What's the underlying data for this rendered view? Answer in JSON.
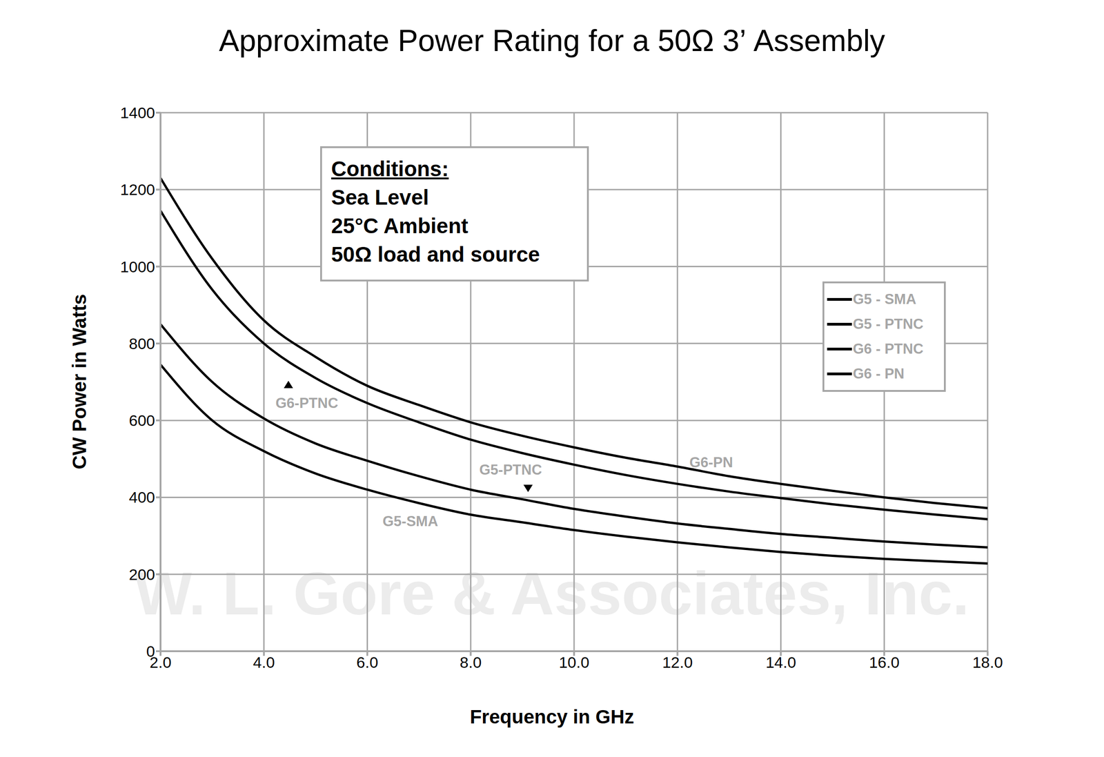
{
  "chart_data": {
    "type": "line",
    "title": "Approximate Power Rating for a 50Ω 3’ Assembly",
    "x_label": "Frequency in GHz",
    "y_label": "CW Power in Watts",
    "x": [
      2,
      3,
      4,
      5,
      6,
      7,
      8,
      9,
      10,
      11,
      12,
      13,
      14,
      15,
      16,
      17,
      18
    ],
    "series": [
      {
        "name": "G5 - SMA",
        "color": "#000000",
        "line_style": "solid",
        "values": [
          745,
          600,
          520,
          462,
          420,
          385,
          355,
          335,
          315,
          298,
          283,
          270,
          258,
          248,
          240,
          234,
          228
        ]
      },
      {
        "name": "G5 - PTNC",
        "color": "#000000",
        "line_style": "solid",
        "values": [
          850,
          700,
          605,
          540,
          495,
          455,
          420,
          395,
          370,
          350,
          332,
          318,
          305,
          295,
          285,
          277,
          270
        ]
      },
      {
        "name": "G6 - PTNC",
        "color": "#000000",
        "line_style": "solid",
        "values": [
          1145,
          940,
          800,
          710,
          645,
          595,
          550,
          515,
          485,
          458,
          435,
          415,
          398,
          382,
          368,
          355,
          343
        ]
      },
      {
        "name": "G6 - PN",
        "color": "#000000",
        "line_style": "solid",
        "values": [
          1230,
          1020,
          860,
          765,
          690,
          640,
          595,
          560,
          530,
          503,
          480,
          455,
          435,
          417,
          400,
          385,
          372
        ]
      }
    ],
    "xlim": [
      2,
      18
    ],
    "xticks": [
      {
        "value": 2,
        "label": "2.0"
      },
      {
        "value": 4,
        "label": "4.0"
      },
      {
        "value": 6,
        "label": "6.0"
      },
      {
        "value": 8,
        "label": "8.0"
      },
      {
        "value": 10,
        "label": "10.0"
      },
      {
        "value": 12,
        "label": "12.0"
      },
      {
        "value": 14,
        "label": "14.0"
      },
      {
        "value": 16,
        "label": "16.0"
      },
      {
        "value": 18,
        "label": "18.0"
      }
    ],
    "ylim": [
      0,
      1400
    ],
    "yticks": [
      0,
      200,
      400,
      600,
      800,
      1000,
      1200,
      1400
    ],
    "grid": true,
    "legend": "right",
    "conditions": {
      "title": "Conditions:",
      "lines": [
        "Sea Level",
        "25°C Ambient",
        "50Ω load and source"
      ]
    },
    "annotations": [
      "G6-PTNC",
      "G5-PTNC",
      "G6-PN",
      "G5-SMA"
    ],
    "watermark": "W. L. Gore & Associates, Inc."
  }
}
